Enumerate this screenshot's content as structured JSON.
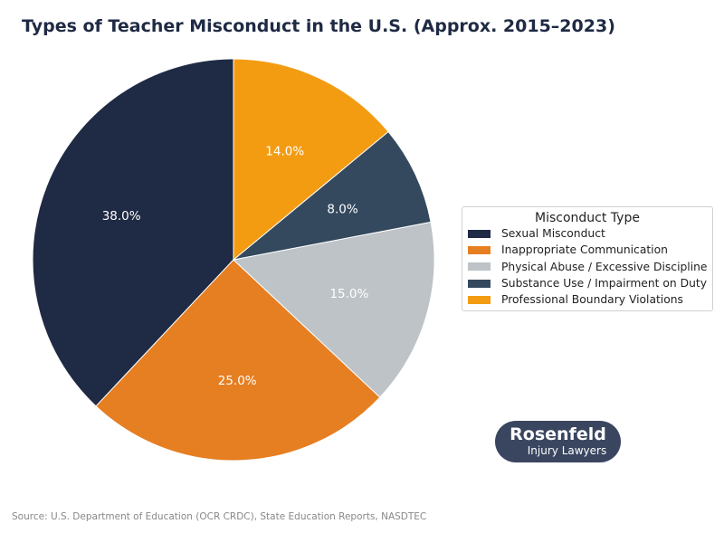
{
  "chart_data": {
    "type": "pie",
    "title": "Types of Teacher Misconduct in the U.S. (Approx. 2015–2023)",
    "start_angle_deg": 90,
    "direction": "counterclockwise",
    "legend_title": "Misconduct Type",
    "legend_placement": "right",
    "slices": [
      {
        "label": "Sexual Misconduct",
        "value": 38.0,
        "display": "38.0%",
        "color": "#1f2a44"
      },
      {
        "label": "Inappropriate Communication",
        "value": 25.0,
        "display": "25.0%",
        "color": "#e67e22"
      },
      {
        "label": "Physical Abuse / Excessive Discipline",
        "value": 15.0,
        "display": "15.0%",
        "color": "#bdc3c7"
      },
      {
        "label": "Substance Use / Impairment on Duty",
        "value": 8.0,
        "display": "8.0%",
        "color": "#34495e"
      },
      {
        "label": "Professional Boundary Violations",
        "value": 14.0,
        "display": "14.0%",
        "color": "#f39c12"
      }
    ]
  },
  "logo": {
    "line1": "Rosenfeld",
    "line2": "Injury Lawyers"
  },
  "source": "Source: U.S. Department of Education (OCR CRDC), State Education Reports, NASDTEC"
}
